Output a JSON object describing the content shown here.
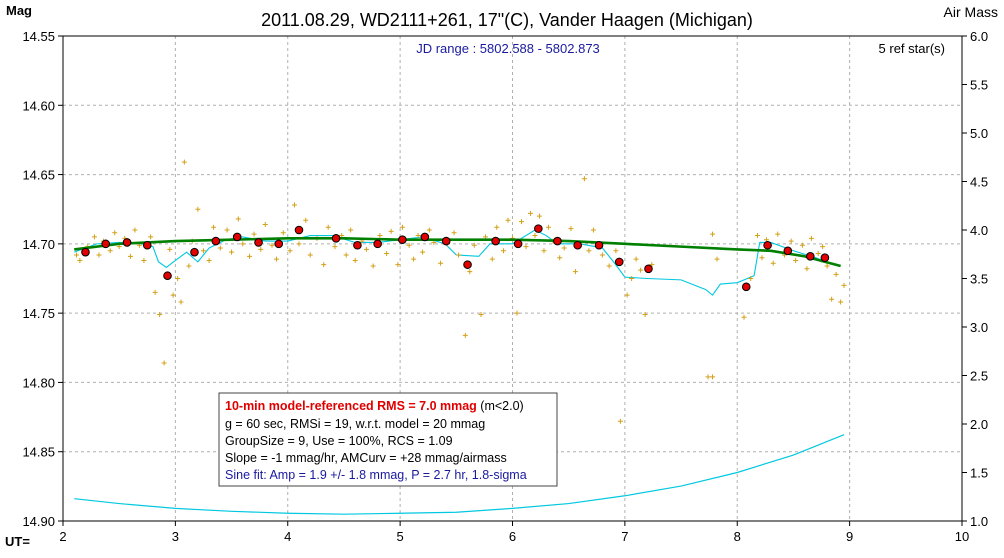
{
  "chart_data": {
    "type": "scatter",
    "title": "2011.08.29, WD2111+261, 17\"(C), Vander Haagen (Michigan)",
    "subtitle": "JD range : 5802.588 - 5802.873",
    "ref_stars": "5 ref star(s)",
    "ylabel": "Mag",
    "y2label": "Air Mass",
    "xlabel": "UT=",
    "xlim": [
      2,
      10
    ],
    "ylim": [
      14.9,
      14.55
    ],
    "y2lim": [
      1.0,
      6.0
    ],
    "x_ticks": [
      "2",
      "3",
      "4",
      "5",
      "6",
      "7",
      "8",
      "9",
      "10"
    ],
    "y_ticks": [
      "14.55",
      "14.60",
      "14.65",
      "14.70",
      "14.75",
      "14.80",
      "14.85",
      "14.90"
    ],
    "y2_ticks": [
      "6.0",
      "5.5",
      "5.0",
      "4.5",
      "4.0",
      "3.5",
      "3.0",
      "2.5",
      "2.0",
      "1.5",
      "1.0"
    ],
    "grid": true,
    "colors": {
      "raw_points": "#d4a017",
      "group_means": "#e00000",
      "model": "#008000",
      "air_mass": "#00c8e0",
      "axes": "#000000",
      "grid": "#b0b0b0"
    },
    "legend": {
      "line1_bold": "10-min model-referenced RMS = 7.0 mmag",
      "line1_rest": " (m<2.0)",
      "line2": "g = 60 sec, RMSi = 19, w.r.t. model = 20 mmag",
      "line3": "GroupSize = 9, Use = 100%, RCS = 1.09",
      "line4": "Slope = -1 mmag/hr, AMCurv = +28 mmag/airmass",
      "line5": "Sine fit: Amp = 1.9 +/- 1.8 mmag, P = 2.7 hr, 1.8-sigma"
    },
    "series": [
      {
        "key": "group_means",
        "points": [
          [
            2.2,
            14.706
          ],
          [
            2.38,
            14.7
          ],
          [
            2.57,
            14.699
          ],
          [
            2.75,
            14.701
          ],
          [
            2.93,
            14.723
          ],
          [
            3.17,
            14.706
          ],
          [
            3.36,
            14.698
          ],
          [
            3.55,
            14.695
          ],
          [
            3.74,
            14.699
          ],
          [
            3.92,
            14.7
          ],
          [
            4.1,
            14.69
          ],
          [
            4.43,
            14.696
          ],
          [
            4.62,
            14.701
          ],
          [
            4.8,
            14.7
          ],
          [
            5.02,
            14.697
          ],
          [
            5.22,
            14.695
          ],
          [
            5.41,
            14.698
          ],
          [
            5.6,
            14.715
          ],
          [
            5.85,
            14.698
          ],
          [
            6.05,
            14.7
          ],
          [
            6.23,
            14.689
          ],
          [
            6.4,
            14.698
          ],
          [
            6.58,
            14.701
          ],
          [
            6.77,
            14.701
          ],
          [
            6.95,
            14.713
          ],
          [
            7.21,
            14.718
          ],
          [
            8.08,
            14.731
          ],
          [
            8.27,
            14.701
          ],
          [
            8.45,
            14.705
          ],
          [
            8.65,
            14.709
          ],
          [
            8.78,
            14.71
          ]
        ]
      },
      {
        "key": "model",
        "points": [
          [
            2.1,
            14.704
          ],
          [
            2.5,
            14.7
          ],
          [
            3.0,
            14.698
          ],
          [
            3.5,
            14.697
          ],
          [
            4.0,
            14.696
          ],
          [
            4.5,
            14.696
          ],
          [
            5.0,
            14.697
          ],
          [
            5.5,
            14.697
          ],
          [
            6.0,
            14.697
          ],
          [
            6.5,
            14.698
          ],
          [
            7.0,
            14.7
          ],
          [
            7.5,
            14.702
          ],
          [
            8.0,
            14.704
          ],
          [
            8.3,
            14.705
          ],
          [
            8.6,
            14.709
          ],
          [
            8.92,
            14.716
          ]
        ]
      },
      {
        "key": "air_mass",
        "points": [
          [
            2.1,
            1.23
          ],
          [
            2.5,
            1.18
          ],
          [
            3.0,
            1.13
          ],
          [
            3.5,
            1.1
          ],
          [
            4.0,
            1.08
          ],
          [
            4.5,
            1.07
          ],
          [
            5.0,
            1.08
          ],
          [
            5.5,
            1.09
          ],
          [
            6.0,
            1.13
          ],
          [
            6.5,
            1.18
          ],
          [
            7.0,
            1.26
          ],
          [
            7.5,
            1.36
          ],
          [
            8.0,
            1.5
          ],
          [
            8.5,
            1.68
          ],
          [
            8.95,
            1.89
          ]
        ]
      },
      {
        "key": "variable_model",
        "points": [
          [
            2.1,
            14.706
          ],
          [
            2.3,
            14.7
          ],
          [
            2.5,
            14.699
          ],
          [
            2.7,
            14.7
          ],
          [
            2.8,
            14.702
          ],
          [
            2.85,
            14.713
          ],
          [
            2.92,
            14.717
          ],
          [
            3.0,
            14.712
          ],
          [
            3.1,
            14.706
          ],
          [
            3.2,
            14.713
          ],
          [
            3.3,
            14.703
          ],
          [
            3.45,
            14.697
          ],
          [
            3.6,
            14.695
          ],
          [
            3.8,
            14.698
          ],
          [
            4.0,
            14.698
          ],
          [
            4.2,
            14.694
          ],
          [
            4.4,
            14.694
          ],
          [
            4.6,
            14.699
          ],
          [
            4.8,
            14.699
          ],
          [
            5.0,
            14.697
          ],
          [
            5.2,
            14.695
          ],
          [
            5.4,
            14.7
          ],
          [
            5.5,
            14.708
          ],
          [
            5.7,
            14.709
          ],
          [
            5.8,
            14.7
          ],
          [
            6.0,
            14.7
          ],
          [
            6.2,
            14.69
          ],
          [
            6.3,
            14.694
          ],
          [
            6.4,
            14.7
          ],
          [
            6.6,
            14.7
          ],
          [
            6.8,
            14.703
          ],
          [
            6.9,
            14.713
          ],
          [
            7.0,
            14.724
          ],
          [
            7.2,
            14.725
          ],
          [
            7.5,
            14.726
          ],
          [
            7.72,
            14.733
          ],
          [
            7.78,
            14.737
          ],
          [
            7.85,
            14.729
          ],
          [
            8.0,
            14.728
          ],
          [
            8.15,
            14.723
          ],
          [
            8.2,
            14.699
          ],
          [
            8.3,
            14.699
          ],
          [
            8.5,
            14.705
          ],
          [
            8.7,
            14.71
          ],
          [
            8.85,
            14.715
          ]
        ]
      },
      {
        "key": "raw_points",
        "points": [
          [
            2.12,
            14.708
          ],
          [
            2.15,
            14.712
          ],
          [
            2.22,
            14.702
          ],
          [
            2.28,
            14.695
          ],
          [
            2.32,
            14.708
          ],
          [
            2.36,
            14.698
          ],
          [
            2.42,
            14.705
          ],
          [
            2.46,
            14.692
          ],
          [
            2.5,
            14.702
          ],
          [
            2.55,
            14.696
          ],
          [
            2.6,
            14.709
          ],
          [
            2.64,
            14.69
          ],
          [
            2.68,
            14.701
          ],
          [
            2.72,
            14.712
          ],
          [
            2.78,
            14.695
          ],
          [
            2.82,
            14.735
          ],
          [
            2.86,
            14.751
          ],
          [
            2.9,
            14.786
          ],
          [
            2.95,
            14.704
          ],
          [
            2.98,
            14.737
          ],
          [
            3.02,
            14.725
          ],
          [
            3.05,
            14.742
          ],
          [
            3.08,
            14.641
          ],
          [
            3.12,
            14.716
          ],
          [
            3.15,
            14.698
          ],
          [
            3.2,
            14.675
          ],
          [
            3.25,
            14.705
          ],
          [
            3.3,
            14.712
          ],
          [
            3.34,
            14.688
          ],
          [
            3.4,
            14.703
          ],
          [
            3.46,
            14.69
          ],
          [
            3.5,
            14.706
          ],
          [
            3.56,
            14.682
          ],
          [
            3.6,
            14.7
          ],
          [
            3.66,
            14.709
          ],
          [
            3.7,
            14.693
          ],
          [
            3.76,
            14.704
          ],
          [
            3.8,
            14.686
          ],
          [
            3.86,
            14.701
          ],
          [
            3.9,
            14.711
          ],
          [
            3.96,
            14.692
          ],
          [
            4.02,
            14.705
          ],
          [
            4.06,
            14.672
          ],
          [
            4.1,
            14.7
          ],
          [
            4.16,
            14.683
          ],
          [
            4.2,
            14.708
          ],
          [
            4.26,
            14.696
          ],
          [
            4.32,
            14.715
          ],
          [
            4.36,
            14.688
          ],
          [
            4.42,
            14.702
          ],
          [
            4.48,
            14.694
          ],
          [
            4.52,
            14.708
          ],
          [
            4.56,
            14.69
          ],
          [
            4.6,
            14.712
          ],
          [
            4.66,
            14.698
          ],
          [
            4.7,
            14.704
          ],
          [
            4.76,
            14.716
          ],
          [
            4.82,
            14.694
          ],
          [
            4.88,
            14.707
          ],
          [
            4.92,
            14.691
          ],
          [
            4.98,
            14.715
          ],
          [
            5.02,
            14.688
          ],
          [
            5.08,
            14.701
          ],
          [
            5.12,
            14.711
          ],
          [
            5.16,
            14.694
          ],
          [
            5.2,
            14.706
          ],
          [
            5.26,
            14.69
          ],
          [
            5.3,
            14.699
          ],
          [
            5.36,
            14.714
          ],
          [
            5.42,
            14.7
          ],
          [
            5.48,
            14.692
          ],
          [
            5.52,
            14.708
          ],
          [
            5.58,
            14.766
          ],
          [
            5.62,
            14.72
          ],
          [
            5.66,
            14.701
          ],
          [
            5.72,
            14.751
          ],
          [
            5.76,
            14.695
          ],
          [
            5.82,
            14.711
          ],
          [
            5.86,
            14.688
          ],
          [
            5.92,
            14.705
          ],
          [
            5.96,
            14.683
          ],
          [
            6.0,
            14.696
          ],
          [
            6.04,
            14.75
          ],
          [
            6.08,
            14.684
          ],
          [
            6.12,
            14.702
          ],
          [
            6.16,
            14.678
          ],
          [
            6.2,
            14.694
          ],
          [
            6.24,
            14.68
          ],
          [
            6.28,
            14.705
          ],
          [
            6.32,
            14.688
          ],
          [
            6.36,
            14.698
          ],
          [
            6.42,
            14.71
          ],
          [
            6.46,
            14.703
          ],
          [
            6.52,
            14.689
          ],
          [
            6.56,
            14.72
          ],
          [
            6.6,
            14.7
          ],
          [
            6.64,
            14.653
          ],
          [
            6.68,
            14.705
          ],
          [
            6.72,
            14.69
          ],
          [
            6.8,
            14.708
          ],
          [
            6.86,
            14.716
          ],
          [
            6.92,
            14.705
          ],
          [
            6.96,
            14.828
          ],
          [
            7.02,
            14.737
          ],
          [
            7.06,
            14.725
          ],
          [
            7.1,
            14.711
          ],
          [
            7.14,
            14.719
          ],
          [
            7.18,
            14.751
          ],
          [
            7.24,
            14.715
          ],
          [
            7.74,
            14.796
          ],
          [
            7.78,
            14.796
          ],
          [
            7.78,
            14.693
          ],
          [
            7.82,
            14.711
          ],
          [
            8.06,
            14.753
          ],
          [
            8.12,
            14.725
          ],
          [
            8.18,
            14.694
          ],
          [
            8.22,
            14.71
          ],
          [
            8.26,
            14.697
          ],
          [
            8.32,
            14.714
          ],
          [
            8.36,
            14.693
          ],
          [
            8.42,
            14.708
          ],
          [
            8.48,
            14.698
          ],
          [
            8.52,
            14.712
          ],
          [
            8.58,
            14.701
          ],
          [
            8.62,
            14.718
          ],
          [
            8.66,
            14.696
          ],
          [
            8.72,
            14.707
          ],
          [
            8.76,
            14.702
          ],
          [
            8.8,
            14.716
          ],
          [
            8.84,
            14.74
          ],
          [
            8.88,
            14.722
          ],
          [
            8.92,
            14.742
          ],
          [
            8.95,
            14.73
          ]
        ]
      }
    ]
  }
}
